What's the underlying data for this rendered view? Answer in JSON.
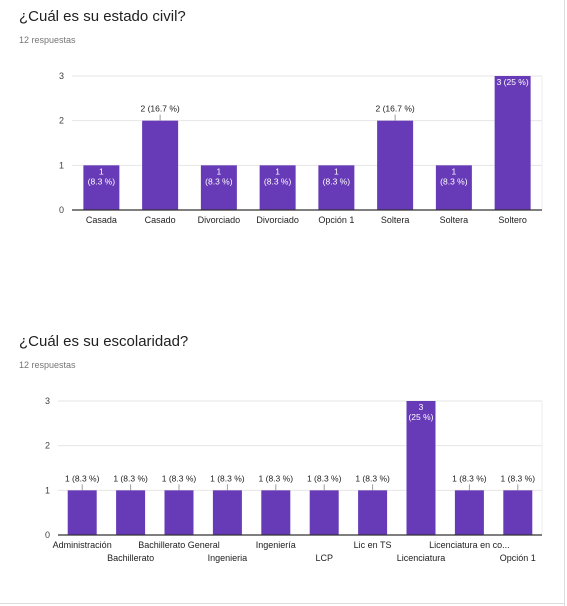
{
  "questions": [
    {
      "title": "¿Cuál es su estado civil?",
      "responses": "12 respuestas",
      "accent": "#673ab7"
    },
    {
      "title": "¿Cuál es su escolaridad?",
      "responses": "12 respuestas",
      "accent": "#673ab7"
    }
  ],
  "chart_data": [
    {
      "type": "bar",
      "title": "¿Cuál es su estado civil?",
      "categories": [
        "Casada",
        "Casado",
        "Divorciado",
        "Divorciado",
        "Opción 1",
        "Soltera",
        "Soltera",
        "Soltero"
      ],
      "values": [
        1,
        2,
        1,
        1,
        1,
        2,
        1,
        3
      ],
      "data_labels": [
        "1\n(8.3 %)",
        "2 (16.7 %)",
        "1\n(8.3 %)",
        "1\n(8.3 %)",
        "1\n(8.3 %)",
        "2 (16.7 %)",
        "1\n(8.3 %)",
        "3 (25 %)"
      ],
      "yticks": [
        "0",
        "1",
        "2",
        "3"
      ],
      "ylim": [
        0,
        3
      ],
      "grid": true,
      "color": "#673ab7"
    },
    {
      "type": "bar",
      "title": "¿Cuál es su escolaridad?",
      "categories": [
        "Administración",
        "Bachillerato",
        "Bachillerato General",
        "Ingenieria",
        "Ingeniería",
        "LCP",
        "Lic en TS",
        "Licenciatura",
        "Licenciatura en co...",
        "Opción 1"
      ],
      "values": [
        1,
        1,
        1,
        1,
        1,
        1,
        1,
        3,
        1,
        1
      ],
      "data_labels": [
        "1 (8.3 %)",
        "1 (8.3 %)",
        "1 (8.3 %)",
        "1 (8.3 %)",
        "1 (8.3 %)",
        "1 (8.3 %)",
        "1 (8.3 %)",
        "3\n(25 %)",
        "1 (8.3 %)",
        "1 (8.3 %)"
      ],
      "yticks": [
        "0",
        "1",
        "2",
        "3"
      ],
      "ylim": [
        0,
        3
      ],
      "grid": true,
      "color": "#673ab7"
    }
  ]
}
